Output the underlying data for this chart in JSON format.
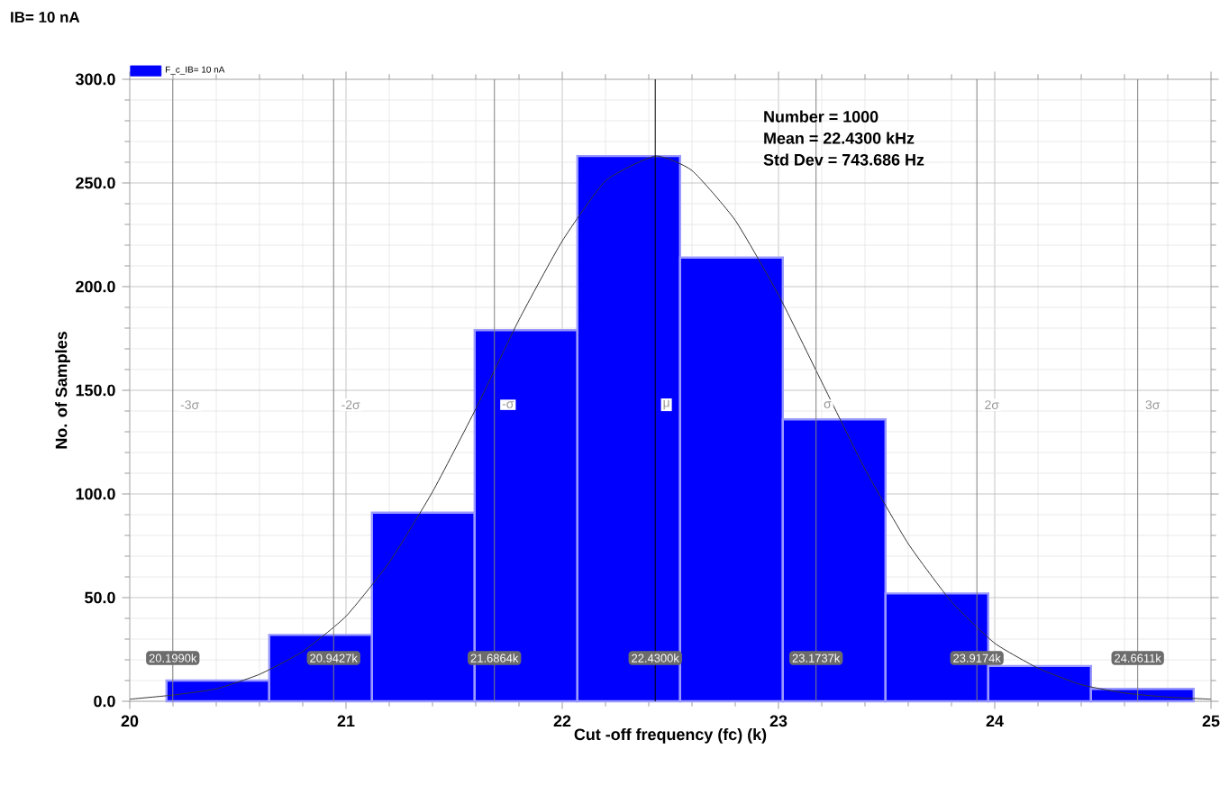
{
  "chart_data": {
    "type": "histogram",
    "title": "IB= 10 nA",
    "xlabel": "Cut -off frequency (fc) (k)",
    "ylabel": "No. of Samples",
    "series": [
      {
        "name": "F_c_IB= 10 nA",
        "color": "#0000ff",
        "bins": [
          20.17,
          20.645,
          21.12,
          21.595,
          22.07,
          22.545,
          23.02,
          23.495,
          23.97,
          24.445,
          24.92
        ],
        "values": [
          10,
          32,
          91,
          179,
          263,
          214,
          136,
          52,
          17,
          6
        ]
      },
      {
        "type": "line",
        "color": "#333333",
        "x": [
          20.0,
          20.2,
          20.4,
          20.6,
          20.8,
          21.0,
          21.2,
          21.4,
          21.6,
          21.8,
          22.0,
          22.2,
          22.43,
          22.6,
          22.8,
          23.0,
          23.2,
          23.4,
          23.6,
          23.8,
          24.0,
          24.2,
          24.4,
          24.6,
          24.8,
          25.0
        ],
        "values": [
          1,
          3,
          6,
          13,
          24,
          41,
          67,
          101,
          141,
          184,
          222,
          251,
          263,
          256,
          232,
          196,
          154,
          112,
          76,
          48,
          28,
          16,
          8,
          4,
          2,
          1
        ]
      }
    ],
    "xlim": [
      20,
      25
    ],
    "ylim": [
      0,
      300
    ],
    "xticks": [
      20,
      21,
      22,
      23,
      24,
      25
    ],
    "yticks": [
      {
        "value": 0,
        "label": "0.0"
      },
      {
        "value": 50,
        "label": "50.0"
      },
      {
        "value": 100,
        "label": "100.0"
      },
      {
        "value": 150,
        "label": "150.0"
      },
      {
        "value": 200,
        "label": "200.0"
      },
      {
        "value": 250,
        "label": "250.0"
      },
      {
        "value": 300,
        "label": "300.0"
      }
    ],
    "grid": true,
    "legend": "top left",
    "ref_lines": [
      {
        "axis": "x",
        "value": 20.199,
        "label": "20.1990k",
        "color": "#808080"
      },
      {
        "axis": "x",
        "value": 20.9427,
        "label": "20.9427k",
        "color": "#808080"
      },
      {
        "axis": "x",
        "value": 21.6864,
        "label": "21.6864k",
        "color": "#808080"
      },
      {
        "axis": "x",
        "value": 22.43,
        "label": "22.4300k",
        "color": "#000000"
      },
      {
        "axis": "x",
        "value": 23.1737,
        "label": "23.1737k",
        "color": "#808080"
      },
      {
        "axis": "x",
        "value": 23.9174,
        "label": "23.9174k",
        "color": "#808080"
      },
      {
        "axis": "x",
        "value": 24.6611,
        "label": "24.6611k",
        "color": "#808080"
      }
    ],
    "annotations": [
      "Number = 1000",
      "Mean = 22.4300 kHz",
      "Std Dev = 743.686 Hz",
      {
        "text": "-3σ",
        "x": 20.199,
        "y": 143
      },
      {
        "text": "-2σ",
        "x": 20.9427,
        "y": 143
      },
      {
        "text": "-σ",
        "x": 21.6864,
        "y": 143
      },
      {
        "text": "μ",
        "x": 22.43,
        "y": 143
      },
      {
        "text": "σ",
        "x": 23.1737,
        "y": 143
      },
      {
        "text": "2σ",
        "x": 23.9174,
        "y": 143
      },
      {
        "text": "3σ",
        "x": 24.6611,
        "y": 143
      }
    ]
  }
}
